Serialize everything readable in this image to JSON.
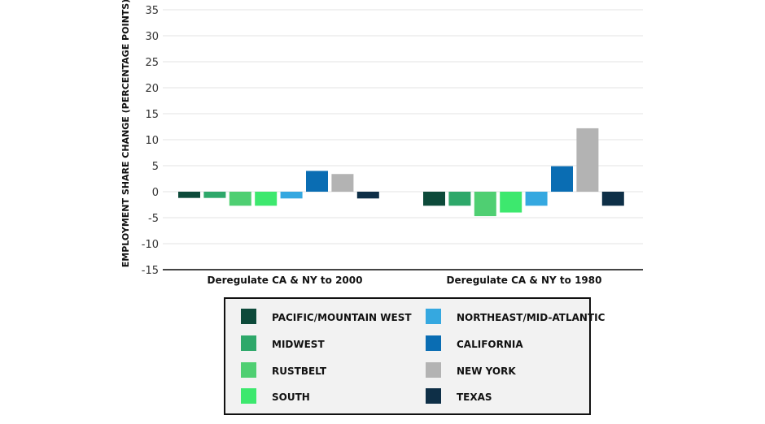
{
  "chart_data": {
    "type": "bar",
    "title": "",
    "xlabel": "",
    "ylabel": "EMPLOYMENT SHARE CHANGE (PERCENTAGE POINTS)",
    "ylim": [
      -15,
      35
    ],
    "yticks": [
      35,
      30,
      25,
      20,
      15,
      10,
      5,
      0,
      -5,
      -10,
      -15
    ],
    "ytick_labels": [
      "35",
      "30",
      "25",
      "20",
      "15",
      "10",
      "5",
      "0",
      "-5",
      "-10",
      "-15"
    ],
    "grid": true,
    "categories": [
      "Deregulate CA & NY to 2000",
      "Deregulate CA & NY to 1980"
    ],
    "series": [
      {
        "name": "PACIFIC/MOUNTAIN WEST",
        "color": "#0d4a3a",
        "values": [
          -1.2,
          -2.7
        ]
      },
      {
        "name": "MIDWEST",
        "color": "#2ea86a",
        "values": [
          -1.2,
          -2.7
        ]
      },
      {
        "name": "RUSTBELT",
        "color": "#4fcf72",
        "values": [
          -2.7,
          -4.7
        ]
      },
      {
        "name": "SOUTH",
        "color": "#3de86e",
        "values": [
          -2.7,
          -4.0
        ]
      },
      {
        "name": "NORTHEAST/MID-ATLANTIC",
        "color": "#35a8e0",
        "values": [
          -1.3,
          -2.7
        ]
      },
      {
        "name": "CALIFORNIA",
        "color": "#0a6db3",
        "values": [
          4.0,
          4.9
        ]
      },
      {
        "name": "NEW YORK",
        "color": "#b3b3b3",
        "values": [
          3.4,
          12.2
        ]
      },
      {
        "name": "TEXAS",
        "color": "#0e2f47",
        "values": [
          -1.3,
          -2.7
        ]
      }
    ],
    "legend_position": "bottom-center"
  }
}
